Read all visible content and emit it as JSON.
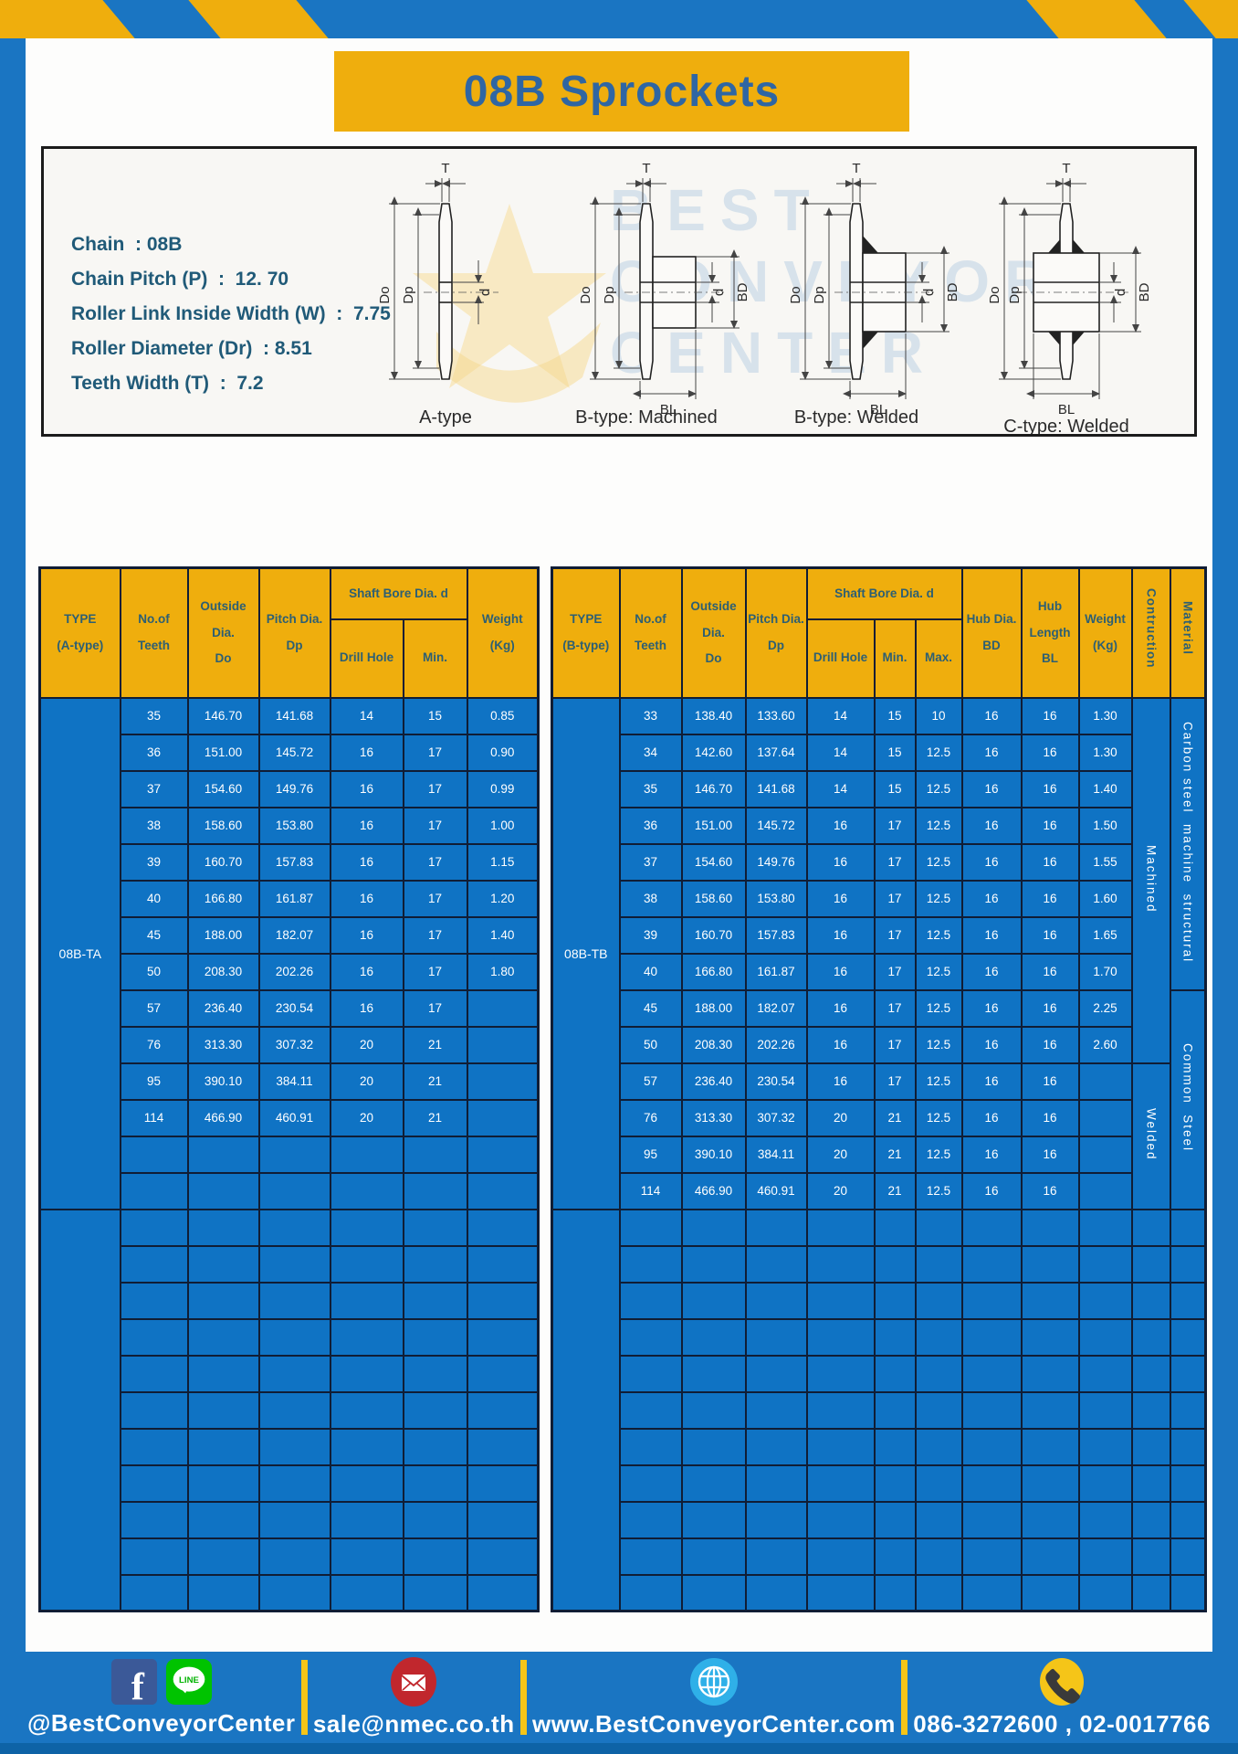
{
  "page": {
    "title": "08B Sprockets"
  },
  "colors": {
    "page_blue": "#1a75c2",
    "gold": "#efae0d",
    "cell_blue": "#0f73c4",
    "border_navy": "#101d35",
    "header_text": "#2d5f73",
    "title_text": "#2f66a3",
    "spec_text": "#205a78",
    "footer_strip": "#0e63a6",
    "facebook_blue": "#3b5998",
    "line_green": "#00c300",
    "email_red": "#c1272d",
    "globe_blue": "#2fb0e8",
    "phone_yellow": "#f5c518"
  },
  "specs": [
    "Chain  : 08B",
    "Chain Pitch (P)  :  12. 70",
    "Roller Link Inside Width (W)  :  7.75",
    "Roller Diameter (Dr)  : 8.51",
    "Teeth Width (T)  :  7.2"
  ],
  "watermark": {
    "text": "BEST\nCONVEYOR\nCENTER"
  },
  "diagrams": {
    "captions": [
      "A-type",
      "B-type: Machined",
      "B-type: Welded",
      "C-type: Welded"
    ],
    "labels": {
      "t": "T",
      "do": "Do",
      "dp": "Dp",
      "d": "d",
      "bd": "BD",
      "bl": "BL"
    }
  },
  "table_a": {
    "type_label": "08B-TA",
    "headers": {
      "type": "TYPE\n(A-type)",
      "teeth": "No.of\nTeeth",
      "outside": "Outside\nDia.\nDo",
      "pitch": "Pitch Dia.\nDp",
      "shaft": "Shaft Bore Dia. d",
      "drill": "Drill Hole",
      "min": "Min.",
      "weight": "Weight\n(Kg)"
    },
    "rows": [
      [
        "35",
        "146.70",
        "141.68",
        "14",
        "15",
        "0.85"
      ],
      [
        "36",
        "151.00",
        "145.72",
        "16",
        "17",
        "0.90"
      ],
      [
        "37",
        "154.60",
        "149.76",
        "16",
        "17",
        "0.99"
      ],
      [
        "38",
        "158.60",
        "153.80",
        "16",
        "17",
        "1.00"
      ],
      [
        "39",
        "160.70",
        "157.83",
        "16",
        "17",
        "1.15"
      ],
      [
        "40",
        "166.80",
        "161.87",
        "16",
        "17",
        "1.20"
      ],
      [
        "45",
        "188.00",
        "182.07",
        "16",
        "17",
        "1.40"
      ],
      [
        "50",
        "208.30",
        "202.26",
        "16",
        "17",
        "1.80"
      ],
      [
        "57",
        "236.40",
        "230.54",
        "16",
        "17",
        ""
      ],
      [
        "76",
        "313.30",
        "307.32",
        "20",
        "21",
        ""
      ],
      [
        "95",
        "390.10",
        "384.11",
        "20",
        "21",
        ""
      ],
      [
        "114",
        "466.90",
        "460.91",
        "20",
        "21",
        ""
      ]
    ],
    "empty_rows_under_type": 2,
    "empty_rows_merged": 11
  },
  "table_b": {
    "type_label": "08B-TB",
    "headers": {
      "type": "TYPE\n(B-type)",
      "teeth": "No.of\nTeeth",
      "outside": "Outside\nDia.\nDo",
      "pitch": "Pitch Dia.\nDp",
      "shaft": "Shaft Bore Dia. d",
      "drill": "Drill Hole",
      "min": "Min.",
      "max": "Max.",
      "hub_dia": "Hub Dia.\nBD",
      "hub_len": "Hub\nLength\nBL",
      "weight": "Weight\n(Kg)",
      "construction": "Contruction",
      "material": "Material"
    },
    "rows": [
      [
        "33",
        "138.40",
        "133.60",
        "14",
        "15",
        "10",
        "16",
        "16",
        "1.30"
      ],
      [
        "34",
        "142.60",
        "137.64",
        "14",
        "15",
        "12.5",
        "16",
        "16",
        "1.30"
      ],
      [
        "35",
        "146.70",
        "141.68",
        "14",
        "15",
        "12.5",
        "16",
        "16",
        "1.40"
      ],
      [
        "36",
        "151.00",
        "145.72",
        "16",
        "17",
        "12.5",
        "16",
        "16",
        "1.50"
      ],
      [
        "37",
        "154.60",
        "149.76",
        "16",
        "17",
        "12.5",
        "16",
        "16",
        "1.55"
      ],
      [
        "38",
        "158.60",
        "153.80",
        "16",
        "17",
        "12.5",
        "16",
        "16",
        "1.60"
      ],
      [
        "39",
        "160.70",
        "157.83",
        "16",
        "17",
        "12.5",
        "16",
        "16",
        "1.65"
      ],
      [
        "40",
        "166.80",
        "161.87",
        "16",
        "17",
        "12.5",
        "16",
        "16",
        "1.70"
      ],
      [
        "45",
        "188.00",
        "182.07",
        "16",
        "17",
        "12.5",
        "16",
        "16",
        "2.25"
      ],
      [
        "50",
        "208.30",
        "202.26",
        "16",
        "17",
        "12.5",
        "16",
        "16",
        "2.60"
      ],
      [
        "57",
        "236.40",
        "230.54",
        "16",
        "17",
        "12.5",
        "16",
        "16",
        ""
      ],
      [
        "76",
        "313.30",
        "307.32",
        "20",
        "21",
        "12.5",
        "16",
        "16",
        ""
      ],
      [
        "95",
        "390.10",
        "384.11",
        "20",
        "21",
        "12.5",
        "16",
        "16",
        ""
      ],
      [
        "114",
        "466.90",
        "460.91",
        "20",
        "21",
        "12.5",
        "16",
        "16",
        ""
      ]
    ],
    "construction": [
      {
        "label": "Machined",
        "span": 10
      },
      {
        "label": "Welded",
        "span": 4
      }
    ],
    "material": [
      {
        "label": "Carbon steel  machine  structural",
        "span": 8
      },
      {
        "label": "Common  Steel",
        "span": 6
      }
    ],
    "empty_rows_merged": 11
  },
  "footer": {
    "items": [
      {
        "icons": [
          "facebook",
          "line"
        ],
        "text": "@BestConveyorCenter"
      },
      {
        "icons": [
          "email"
        ],
        "text": "sale@nmec.co.th"
      },
      {
        "icons": [
          "globe"
        ],
        "text": "www.BestConveyorCenter.com"
      },
      {
        "icons": [
          "phone"
        ],
        "text": "086-3272600 , 02-0017766"
      }
    ]
  }
}
